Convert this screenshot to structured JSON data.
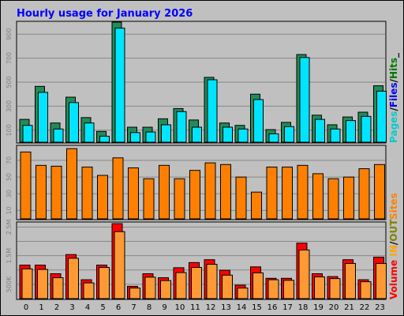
{
  "title": "Hourly usage for January 2026",
  "colors": {
    "background": "#c0c0c0",
    "title": "#0000ff",
    "hits": "#228b57",
    "files": "#00e5ff",
    "sites": "#ff8000",
    "kbin": "#ff0000",
    "kbout": "#ff9933",
    "pages_label": "#00cccc",
    "files_label": "#0000ff",
    "hits_label": "#007700",
    "sites_label": "#ff8000",
    "volume_label": "#ff0000",
    "in_label": "#ffa500",
    "out_label": "#808000"
  },
  "chart_data": [
    {
      "type": "bar",
      "panel": "hits-files-pages",
      "categories": [
        "0",
        "1",
        "2",
        "3",
        "4",
        "5",
        "6",
        "7",
        "8",
        "9",
        "10",
        "11",
        "12",
        "13",
        "14",
        "15",
        "16",
        "17",
        "18",
        "19",
        "20",
        "21",
        "22",
        "23"
      ],
      "series": [
        {
          "name": "Hits",
          "values": [
            190,
            465,
            160,
            375,
            205,
            90,
            1000,
            125,
            125,
            195,
            280,
            185,
            540,
            160,
            140,
            400,
            105,
            165,
            730,
            225,
            145,
            210,
            250,
            470
          ]
        },
        {
          "name": "Files",
          "values": [
            140,
            415,
            110,
            330,
            160,
            50,
            950,
            80,
            85,
            145,
            255,
            125,
            520,
            125,
            110,
            355,
            70,
            130,
            705,
            190,
            110,
            180,
            215,
            425
          ]
        },
        {
          "name": "Pages",
          "values": [
            0,
            0,
            0,
            0,
            0,
            0,
            0,
            0,
            0,
            0,
            0,
            0,
            0,
            0,
            0,
            0,
            0,
            0,
            0,
            0,
            0,
            0,
            0,
            0
          ]
        }
      ],
      "ylim": [
        0,
        1000
      ],
      "yticks": [
        "100",
        "300",
        "500",
        "700",
        "900"
      ],
      "legend": [
        "Pages",
        "/",
        "Files",
        "/",
        "Hits",
        "_"
      ]
    },
    {
      "type": "bar",
      "panel": "sites",
      "categories": [
        "0",
        "1",
        "2",
        "3",
        "4",
        "5",
        "6",
        "7",
        "8",
        "9",
        "10",
        "11",
        "12",
        "13",
        "14",
        "15",
        "16",
        "17",
        "18",
        "19",
        "20",
        "21",
        "22",
        "23"
      ],
      "series": [
        {
          "name": "Sites",
          "values": [
            80,
            64,
            63,
            84,
            62,
            52,
            73,
            61,
            48,
            64,
            48,
            58,
            67,
            65,
            50,
            32,
            62,
            62,
            64,
            54,
            48,
            50,
            60,
            65
          ]
        }
      ],
      "ylim": [
        0,
        87
      ],
      "yticks": [
        "10",
        "30",
        "50",
        "70"
      ],
      "legend": [
        "Sites"
      ]
    },
    {
      "type": "bar",
      "panel": "volume",
      "categories": [
        "0",
        "1",
        "2",
        "3",
        "4",
        "5",
        "6",
        "7",
        "8",
        "9",
        "10",
        "11",
        "12",
        "13",
        "14",
        "15",
        "16",
        "17",
        "18",
        "19",
        "20",
        "21",
        "22",
        "23"
      ],
      "series": [
        {
          "name": "IN",
          "values": [
            1.17,
            1.17,
            0.87,
            1.54,
            0.66,
            1.17,
            2.62,
            0.43,
            0.87,
            0.73,
            1.08,
            1.26,
            1.36,
            0.99,
            0.47,
            1.11,
            0.71,
            0.71,
            1.94,
            0.87,
            0.77,
            1.36,
            0.66,
            1.45
          ]
        },
        {
          "name": "OUT",
          "values": [
            1.04,
            1.02,
            0.73,
            1.41,
            0.55,
            1.09,
            2.34,
            0.37,
            0.75,
            0.63,
            0.91,
            1.09,
            1.2,
            0.82,
            0.37,
            0.9,
            0.66,
            0.64,
            1.7,
            0.76,
            0.7,
            1.23,
            0.59,
            1.23
          ]
        }
      ],
      "ylim": [
        0,
        2.65
      ],
      "yticks": [
        "500K",
        "1.5M",
        "2.5M"
      ],
      "ytick_values": [
        0.5,
        1.5,
        2.5
      ],
      "legend": [
        "Volume",
        "IN",
        "/",
        "OUT"
      ]
    }
  ]
}
